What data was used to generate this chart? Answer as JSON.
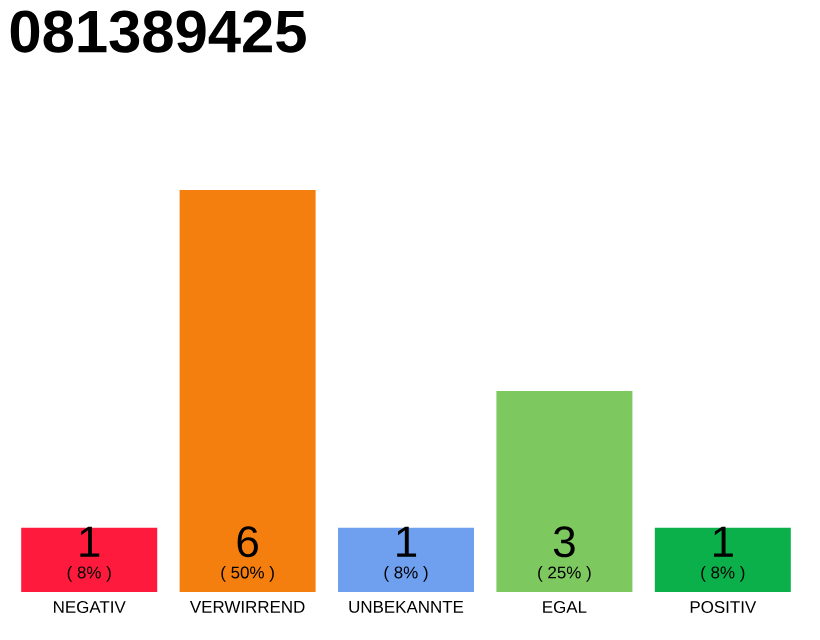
{
  "chart_data": {
    "type": "bar",
    "title": "081389425",
    "categories": [
      "NEGATIV",
      "VERWIRREND",
      "UNBEKANNTE",
      "EGAL",
      "POSITIV"
    ],
    "values": [
      8,
      50,
      8,
      25,
      8
    ],
    "colors": [
      "#fe1a3c",
      "#f57f0e",
      "#6fa0ef",
      "#7ec95f",
      "#0bb04a"
    ],
    "value_labels": [
      "( 8% )",
      "( 50% )",
      "( 8% )",
      "( 25% )",
      "( 8% )"
    ],
    "annotations": [
      "1",
      "6",
      "1",
      "3",
      "1"
    ],
    "tick_labels": "x"
  }
}
